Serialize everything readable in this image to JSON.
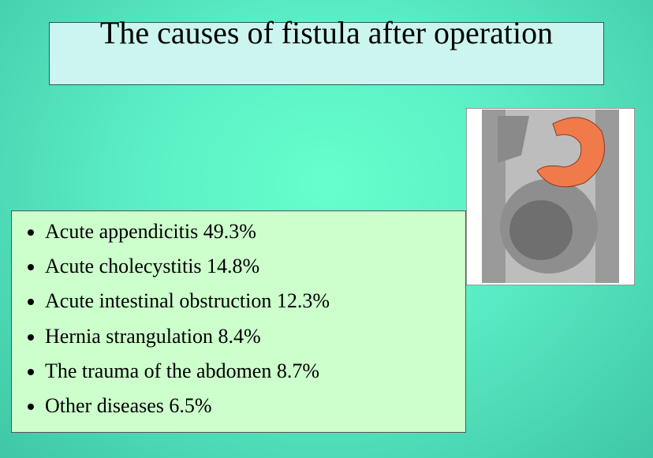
{
  "title": "The causes of fistula after operation",
  "items": [
    "Acute appendicitis 49.3%",
    "Acute cholecystitis 14.8%",
    "Acute intestinal obstruction 12.3%",
    "Hernia strangulation 8.4%",
    "The trauma of the abdomen 8.7%",
    "Other diseases 6.5%"
  ]
}
